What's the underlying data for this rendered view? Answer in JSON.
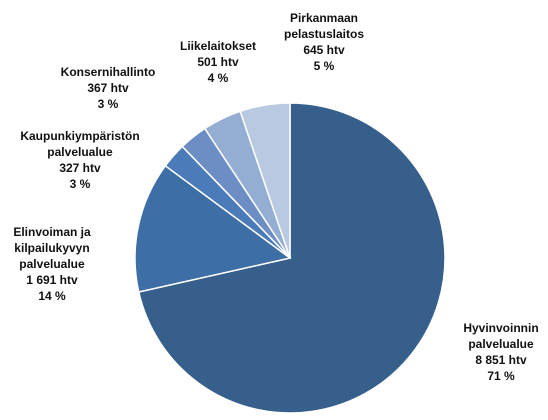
{
  "chart_data": {
    "type": "pie",
    "categories": [
      "Hyvinvoinnin\npalvelualue",
      "Elinvoiman ja\nkilpailukyvyn\npalvelualue",
      "Kaupunkiympäristön\npalvelualue",
      "Konsernihallinto",
      "Liikelaitokset",
      "Pirkanmaan\npelastuslaitos"
    ],
    "values": [
      8851,
      1691,
      327,
      367,
      501,
      645
    ],
    "value_labels": [
      "8 851 htv",
      "1 691 htv",
      "327 htv",
      "367 htv",
      "501 htv",
      "645 htv"
    ],
    "percent_labels": [
      "71 %",
      "14 %",
      "3 %",
      "3 %",
      "4 %",
      "5 %"
    ],
    "colors": [
      "#375f8b",
      "#3e6ea6",
      "#4b7cb9",
      "#6d8ec4",
      "#94aed3",
      "#b8c9e1"
    ]
  }
}
